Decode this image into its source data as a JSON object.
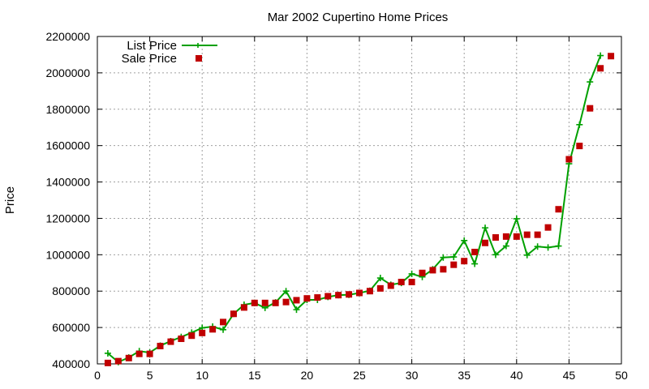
{
  "chart_data": {
    "type": "line",
    "title": "Mar 2002 Cupertino Home Prices",
    "xlabel": "",
    "ylabel": "Price",
    "xlim": [
      0,
      50
    ],
    "ylim": [
      400000,
      2200000
    ],
    "x_ticks": [
      0,
      5,
      10,
      15,
      20,
      25,
      30,
      35,
      40,
      45,
      50
    ],
    "y_ticks": [
      400000,
      600000,
      800000,
      1000000,
      1200000,
      1400000,
      1600000,
      1800000,
      2000000,
      2200000
    ],
    "grid": true,
    "legend_position": "top-left",
    "series": [
      {
        "name": "List Price",
        "style": "line-plus",
        "color": "#00a000",
        "x": [
          1,
          2,
          3,
          4,
          5,
          6,
          7,
          8,
          9,
          10,
          11,
          12,
          13,
          14,
          15,
          16,
          17,
          18,
          19,
          20,
          21,
          22,
          23,
          24,
          25,
          26,
          27,
          28,
          29,
          30,
          31,
          32,
          33,
          34,
          35,
          36,
          37,
          38,
          39,
          40,
          41,
          42,
          43,
          44,
          45,
          46,
          47,
          48
        ],
        "y": [
          458000,
          410000,
          435000,
          470000,
          462000,
          500000,
          525000,
          548000,
          572000,
          598000,
          605000,
          588000,
          675000,
          725000,
          735000,
          708000,
          738000,
          800000,
          698000,
          752000,
          752000,
          768000,
          778000,
          780000,
          790000,
          802000,
          872000,
          835000,
          845000,
          895000,
          878000,
          920000,
          985000,
          988000,
          1078000,
          950000,
          1148000,
          1000000,
          1048000,
          1198000,
          998000,
          1045000,
          1040000,
          1048000,
          1500000,
          1715000,
          1950000,
          2095000
        ]
      },
      {
        "name": "Sale Price",
        "style": "square-markers",
        "color": "#c00000",
        "x": [
          1,
          2,
          3,
          4,
          5,
          6,
          7,
          8,
          9,
          10,
          11,
          12,
          13,
          14,
          15,
          16,
          17,
          18,
          19,
          20,
          21,
          22,
          23,
          24,
          25,
          26,
          27,
          28,
          29,
          30,
          31,
          32,
          33,
          34,
          35,
          36,
          37,
          38,
          39,
          40,
          41,
          42,
          43,
          44,
          45,
          46,
          47,
          48,
          49
        ],
        "y": [
          405000,
          415000,
          432000,
          455000,
          455000,
          498000,
          522000,
          538000,
          555000,
          570000,
          590000,
          630000,
          675000,
          710000,
          735000,
          735000,
          735000,
          740000,
          750000,
          760000,
          765000,
          772000,
          778000,
          782000,
          790000,
          800000,
          815000,
          830000,
          850000,
          850000,
          900000,
          915000,
          920000,
          945000,
          965000,
          1015000,
          1065000,
          1095000,
          1100000,
          1100000,
          1110000,
          1110000,
          1150000,
          1250000,
          1525000,
          1598000,
          1805000,
          2025000,
          2092000
        ]
      }
    ]
  }
}
